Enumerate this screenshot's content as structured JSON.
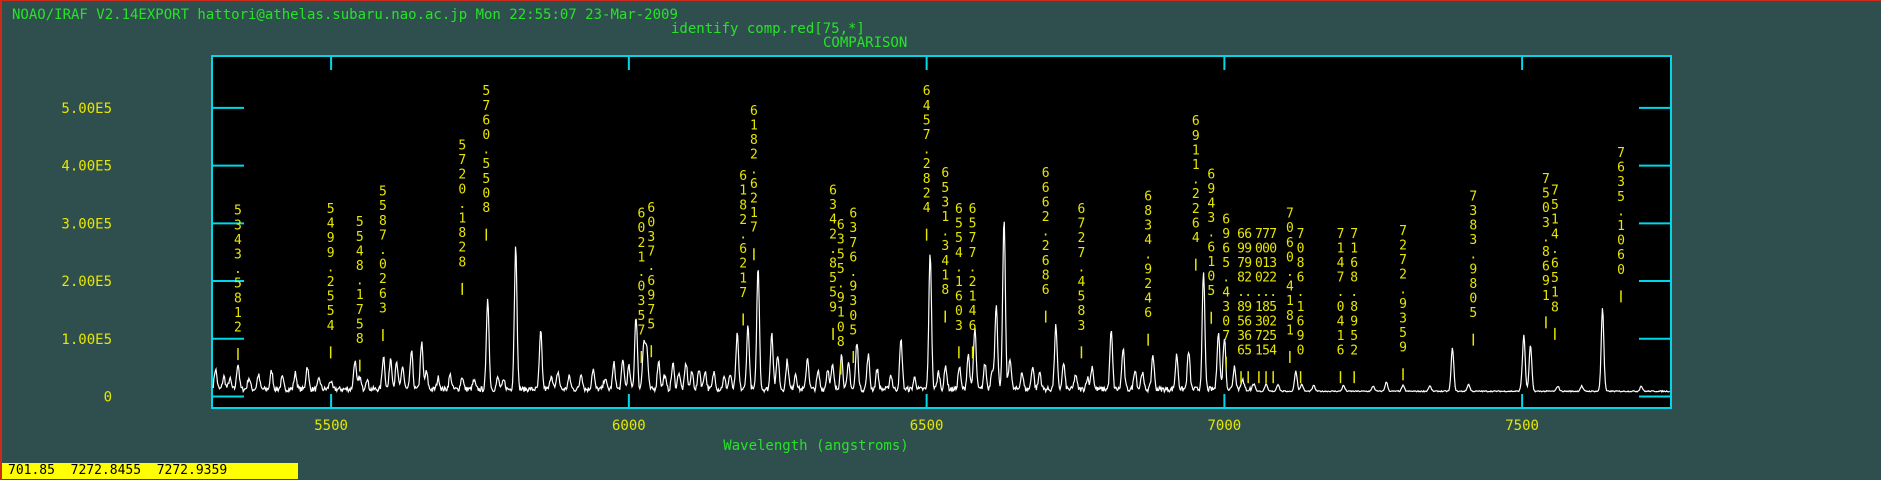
{
  "header": {
    "banner": "NOAO/IRAF V2.14EXPORT hattori@athelas.subaru.nao.ac.jp Mon 22:55:07 23-Mar-2009",
    "command": "identify comp.red[75,*]",
    "title": "COMPARISON"
  },
  "status_bar": {
    "text": "701.85  7272.8455  7272.9359"
  },
  "colors": {
    "background": "#2f4f4f",
    "plot_bg": "#000000",
    "axes": "#00d8e8",
    "trace": "#ffffff",
    "labels": "#e6e600",
    "header_text": "#27e327",
    "status_bg": "#ffff00"
  },
  "chart_data": {
    "type": "line",
    "title": "COMPARISON",
    "xlabel": "Wavelength (angstroms)",
    "ylabel": "",
    "xlim": [
      5300,
      7750
    ],
    "ylim": [
      -20000,
      590000
    ],
    "xticks": [
      5500,
      6000,
      6500,
      7000,
      7500
    ],
    "xtick_labels": [
      "5500",
      "6000",
      "6500",
      "7000",
      "7500"
    ],
    "yticks": [
      0,
      100000,
      200000,
      300000,
      400000,
      500000
    ],
    "ytick_labels": [
      "0",
      "1.00E5",
      "2.00E5",
      "3.00E5",
      "4.00E5",
      "5.00E5"
    ],
    "grid": false,
    "baseline": 8000,
    "peaks": [
      {
        "x": 5306,
        "y": 35000
      },
      {
        "x": 5320,
        "y": 22000
      },
      {
        "x": 5330,
        "y": 18000
      },
      {
        "x": 5343.6,
        "y": 45000
      },
      {
        "x": 5362,
        "y": 20000
      },
      {
        "x": 5378,
        "y": 25000
      },
      {
        "x": 5400,
        "y": 32000
      },
      {
        "x": 5418,
        "y": 20000
      },
      {
        "x": 5440,
        "y": 28000
      },
      {
        "x": 5460,
        "y": 40000
      },
      {
        "x": 5480,
        "y": 18000
      },
      {
        "x": 5499,
        "y": 15000
      },
      {
        "x": 5540,
        "y": 50000
      },
      {
        "x": 5548,
        "y": 22000
      },
      {
        "x": 5560,
        "y": 18000
      },
      {
        "x": 5588,
        "y": 58000
      },
      {
        "x": 5600,
        "y": 55000
      },
      {
        "x": 5610,
        "y": 45000
      },
      {
        "x": 5620,
        "y": 40000
      },
      {
        "x": 5635,
        "y": 65000
      },
      {
        "x": 5652,
        "y": 80000
      },
      {
        "x": 5660,
        "y": 30000
      },
      {
        "x": 5680,
        "y": 20000
      },
      {
        "x": 5700,
        "y": 25000
      },
      {
        "x": 5720,
        "y": 22000
      },
      {
        "x": 5740,
        "y": 15000
      },
      {
        "x": 5763,
        "y": 160000
      },
      {
        "x": 5780,
        "y": 20000
      },
      {
        "x": 5790,
        "y": 15000
      },
      {
        "x": 5810,
        "y": 250000
      },
      {
        "x": 5852,
        "y": 100000
      },
      {
        "x": 5870,
        "y": 25000
      },
      {
        "x": 5881,
        "y": 30000
      },
      {
        "x": 5900,
        "y": 22000
      },
      {
        "x": 5920,
        "y": 28000
      },
      {
        "x": 5940,
        "y": 35000
      },
      {
        "x": 5960,
        "y": 20000
      },
      {
        "x": 5975,
        "y": 45000
      },
      {
        "x": 5990,
        "y": 50000
      },
      {
        "x": 6000,
        "y": 40000
      },
      {
        "x": 6012,
        "y": 128000
      },
      {
        "x": 6025,
        "y": 80000
      },
      {
        "x": 6030,
        "y": 70000
      },
      {
        "x": 6050,
        "y": 50000
      },
      {
        "x": 6060,
        "y": 25000
      },
      {
        "x": 6074,
        "y": 45000
      },
      {
        "x": 6084,
        "y": 30000
      },
      {
        "x": 6096,
        "y": 45000
      },
      {
        "x": 6106,
        "y": 30000
      },
      {
        "x": 6118,
        "y": 35000
      },
      {
        "x": 6128,
        "y": 32000
      },
      {
        "x": 6143,
        "y": 30000
      },
      {
        "x": 6160,
        "y": 20000
      },
      {
        "x": 6170,
        "y": 25000
      },
      {
        "x": 6182,
        "y": 95000
      },
      {
        "x": 6200,
        "y": 110000
      },
      {
        "x": 6217,
        "y": 212000
      },
      {
        "x": 6240,
        "y": 100000
      },
      {
        "x": 6250,
        "y": 60000
      },
      {
        "x": 6266,
        "y": 50000
      },
      {
        "x": 6280,
        "y": 28000
      },
      {
        "x": 6300,
        "y": 55000
      },
      {
        "x": 6318,
        "y": 30000
      },
      {
        "x": 6334,
        "y": 35000
      },
      {
        "x": 6342,
        "y": 40000
      },
      {
        "x": 6357,
        "y": 60000
      },
      {
        "x": 6369,
        "y": 45000
      },
      {
        "x": 6383,
        "y": 80000
      },
      {
        "x": 6402,
        "y": 60000
      },
      {
        "x": 6417,
        "y": 35000
      },
      {
        "x": 6440,
        "y": 25000
      },
      {
        "x": 6457,
        "y": 85000
      },
      {
        "x": 6480,
        "y": 20000
      },
      {
        "x": 6506,
        "y": 235000
      },
      {
        "x": 6520,
        "y": 30000
      },
      {
        "x": 6532,
        "y": 40000
      },
      {
        "x": 6555,
        "y": 38000
      },
      {
        "x": 6570,
        "y": 60000
      },
      {
        "x": 6581,
        "y": 105000
      },
      {
        "x": 6598,
        "y": 45000
      },
      {
        "x": 6610,
        "y": 35000
      },
      {
        "x": 6617,
        "y": 150000
      },
      {
        "x": 6630,
        "y": 295000
      },
      {
        "x": 6640,
        "y": 55000
      },
      {
        "x": 6660,
        "y": 30000
      },
      {
        "x": 6678,
        "y": 40000
      },
      {
        "x": 6690,
        "y": 30000
      },
      {
        "x": 6717,
        "y": 110000
      },
      {
        "x": 6730,
        "y": 45000
      },
      {
        "x": 6750,
        "y": 25000
      },
      {
        "x": 6770,
        "y": 20000
      },
      {
        "x": 6778,
        "y": 40000
      },
      {
        "x": 6810,
        "y": 100000
      },
      {
        "x": 6830,
        "y": 70000
      },
      {
        "x": 6850,
        "y": 35000
      },
      {
        "x": 6862,
        "y": 30000
      },
      {
        "x": 6880,
        "y": 60000
      },
      {
        "x": 6920,
        "y": 60000
      },
      {
        "x": 6940,
        "y": 65000
      },
      {
        "x": 6965,
        "y": 200000
      },
      {
        "x": 6990,
        "y": 100000
      },
      {
        "x": 7000,
        "y": 90000
      },
      {
        "x": 7017,
        "y": 40000
      },
      {
        "x": 7030,
        "y": 18000
      },
      {
        "x": 7050,
        "y": 12000
      },
      {
        "x": 7070,
        "y": 12000
      },
      {
        "x": 7090,
        "y": 12000
      },
      {
        "x": 7120,
        "y": 35000
      },
      {
        "x": 7130,
        "y": 12000
      },
      {
        "x": 7150,
        "y": 10000
      },
      {
        "x": 7200,
        "y": 10000
      },
      {
        "x": 7250,
        "y": 9000
      },
      {
        "x": 7272,
        "y": 16000
      },
      {
        "x": 7300,
        "y": 10000
      },
      {
        "x": 7345,
        "y": 9000
      },
      {
        "x": 7383,
        "y": 75000
      },
      {
        "x": 7410,
        "y": 12000
      },
      {
        "x": 7500,
        "y": 10000
      },
      {
        "x": 7503,
        "y": 93000
      },
      {
        "x": 7514,
        "y": 80000
      },
      {
        "x": 7560,
        "y": 9000
      },
      {
        "x": 7600,
        "y": 9000
      },
      {
        "x": 7635,
        "y": 145000
      },
      {
        "x": 7700,
        "y": 9000
      }
    ],
    "line_ids": [
      "5343.5812",
      "5499.2554",
      "5548.1758",
      "5587.0263",
      "5720.1828",
      "5760.5508",
      "6021.0357",
      "6037.6975",
      "6182.6217",
      "6182.6217",
      "6342.8559",
      "6355.9108",
      "6376.9305",
      "6457.2824",
      "6531.3418",
      "6554.1603",
      "6577.2146",
      "6662.2686",
      "6727.4583",
      "6834.9246",
      "6911.2264",
      "6943.6105",
      "6965.4307",
      "6978.8536",
      "6992.9665",
      "7000.1371",
      "7012.8025",
      "7032.5254",
      "7060.4181",
      "7086.1690",
      "7147.0416",
      "7168.8952",
      "7272.9359",
      "7383.9805",
      "7503.8691",
      "7514.6518",
      "7635.1060"
    ],
    "labels": [
      {
        "text": "5343.5812",
        "x": 5343.6,
        "top": 315000
      },
      {
        "text": "5499.2554",
        "x": 5499.3,
        "top": 318000
      },
      {
        "text": "5548.1758",
        "x": 5548.2,
        "top": 295000
      },
      {
        "text": "5587.0263",
        "x": 5587.0,
        "top": 348000
      },
      {
        "text": "5720.1828",
        "x": 5720.2,
        "top": 428000
      },
      {
        "text": "5760.5508",
        "x": 5760.6,
        "top": 522000
      },
      {
        "text": "6021.0357",
        "x": 6021.0,
        "top": 310000
      },
      {
        "text": "6037.6975",
        "x": 6037.7,
        "top": 320000
      },
      {
        "text": "6182.6217",
        "x": 6210.0,
        "top": 488000
      },
      {
        "text": "6182.6217",
        "x": 6192.0,
        "top": 375000
      },
      {
        "text": "6342.8559",
        "x": 6342.9,
        "top": 350000
      },
      {
        "text": "6355.9108",
        "x": 6355.9,
        "top": 290000
      },
      {
        "text": "6376.9305",
        "x": 6376.9,
        "top": 310000
      },
      {
        "text": "6457.2824",
        "x": 6500.0,
        "top": 522000
      },
      {
        "text": "6531.3418",
        "x": 6531.3,
        "top": 380000
      },
      {
        "text": "6554.1603",
        "x": 6554.2,
        "top": 318000
      },
      {
        "text": "6577.2146",
        "x": 6577.2,
        "top": 318000
      },
      {
        "text": "6662.2686",
        "x": 6700.0,
        "top": 380000
      },
      {
        "text": "6727.4583",
        "x": 6760.0,
        "top": 318000
      },
      {
        "text": "6834.9246",
        "x": 6872.0,
        "top": 340000
      },
      {
        "text": "6911.2264",
        "x": 6952.0,
        "top": 470000
      },
      {
        "text": "6943.6105",
        "x": 6978.0,
        "top": 378000
      },
      {
        "text": "6965.4307",
        "x": 7003.0,
        "top": 300000
      },
      {
        "text": "6978.8536",
        "x": 7028.0,
        "top": 275000
      },
      {
        "text": "6992.9665",
        "x": 7040.0,
        "top": 275000
      },
      {
        "text": "7000.1371",
        "x": 7058.0,
        "top": 275000
      },
      {
        "text": "7012.8025",
        "x": 7070.0,
        "top": 275000
      },
      {
        "text": "7032.5254",
        "x": 7082.0,
        "top": 275000
      },
      {
        "text": "7060.4181",
        "x": 7110.0,
        "top": 310000
      },
      {
        "text": "7086.1690",
        "x": 7128.0,
        "top": 275000
      },
      {
        "text": "7147.0416",
        "x": 7195.0,
        "top": 275000
      },
      {
        "text": "7168.8952",
        "x": 7218.0,
        "top": 275000
      },
      {
        "text": "7272.9359",
        "x": 7300.0,
        "top": 280000
      },
      {
        "text": "7383.9805",
        "x": 7418.0,
        "top": 340000
      },
      {
        "text": "7503.8691",
        "x": 7540.0,
        "top": 370000
      },
      {
        "text": "7514.6518",
        "x": 7555.0,
        "top": 350000
      },
      {
        "text": "7635.1060",
        "x": 7666.0,
        "top": 415000
      }
    ]
  }
}
